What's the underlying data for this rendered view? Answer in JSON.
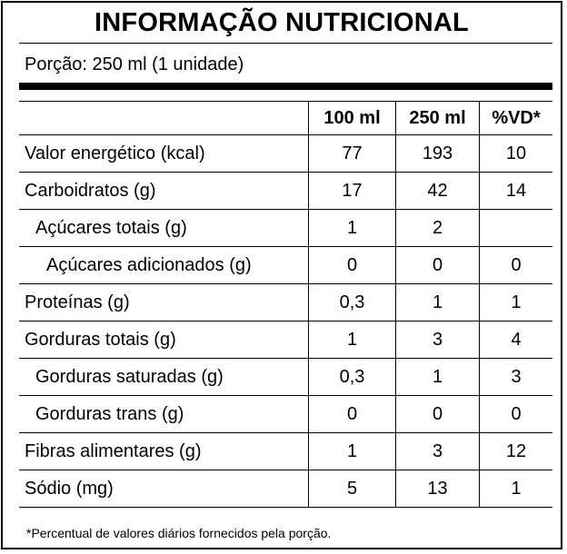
{
  "title": "INFORMAÇÃO NUTRICIONAL",
  "portion": "Porção: 250 ml (1 unidade)",
  "columns": [
    "100 ml",
    "250 ml",
    "%VD*"
  ],
  "rows": [
    {
      "name": "Valor energético (kcal)",
      "v100": "77",
      "v250": "193",
      "vd": "10"
    },
    {
      "name": "Carboidratos (g)",
      "v100": "17",
      "v250": "42",
      "vd": "14"
    },
    {
      "name": "Açúcares totais (g)",
      "v100": "1",
      "v250": "2",
      "vd": ""
    },
    {
      "name": "Açúcares adicionados (g)",
      "v100": "0",
      "v250": "0",
      "vd": "0"
    },
    {
      "name": "Proteínas (g)",
      "v100": "0,3",
      "v250": "1",
      "vd": "1"
    },
    {
      "name": "Gorduras totais (g)",
      "v100": "1",
      "v250": "3",
      "vd": "4"
    },
    {
      "name": "Gorduras saturadas (g)",
      "v100": "0,3",
      "v250": "1",
      "vd": "3"
    },
    {
      "name": "Gorduras trans (g)",
      "v100": "0",
      "v250": "0",
      "vd": "0"
    },
    {
      "name": "Fibras alimentares (g)",
      "v100": "1",
      "v250": "3",
      "vd": "12"
    },
    {
      "name": "Sódio (mg)",
      "v100": "5",
      "v250": "13",
      "vd": "1"
    }
  ],
  "footnote": "*Percentual de valores diários fornecidos pela porção."
}
